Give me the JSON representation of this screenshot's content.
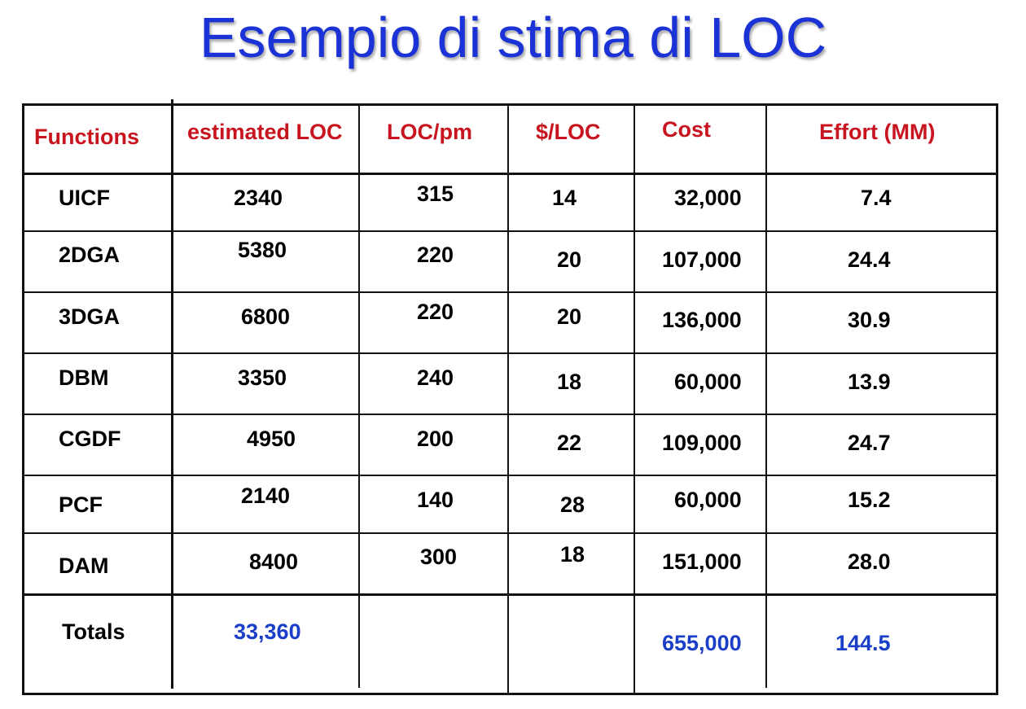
{
  "title": "Esempio di stima di LOC",
  "colors": {
    "title": "#1b33d6",
    "header": "#c8141e",
    "totals": "#1a3ec8"
  },
  "headers": [
    "Functions",
    "estimated LOC",
    "LOC/pm",
    "$/LOC",
    "Cost",
    "Effort (MM)"
  ],
  "rows": [
    [
      "UICF",
      "2340",
      "315",
      "14",
      "32,000",
      "7.4"
    ],
    [
      "2DGA",
      "5380",
      "220",
      "20",
      "107,000",
      "24.4"
    ],
    [
      "3DGA",
      "6800",
      "220",
      "20",
      "136,000",
      "30.9"
    ],
    [
      "DBM",
      "3350",
      "240",
      "18",
      "60,000",
      "13.9"
    ],
    [
      "CGDF",
      "4950",
      "200",
      "22",
      "109,000",
      "24.7"
    ],
    [
      "PCF",
      "2140",
      "140",
      "28",
      "60,000",
      "15.2"
    ],
    [
      "DAM",
      "8400",
      "300",
      "18",
      "151,000",
      "28.0"
    ]
  ],
  "totals": {
    "label": "Totals",
    "estimated_loc": "33,360",
    "cost": "655,000",
    "effort": "144.5"
  }
}
